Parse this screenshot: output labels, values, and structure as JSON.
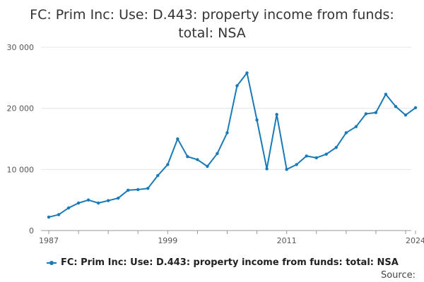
{
  "title": "FC: Prim Inc: Use: D.443: property income from funds: total: NSA",
  "source_label": "Source:",
  "legend": {
    "label": "FC: Prim Inc: Use: D.443: property income from funds: total: NSA"
  },
  "colors": {
    "series": "#1a7ab8",
    "grid": "#e4e4e4",
    "axis": "#999999"
  },
  "chart_data": {
    "type": "line",
    "title": "FC: Prim Inc: Use: D.443: property income from funds: total: NSA",
    "xlabel": "",
    "ylabel": "",
    "xlim": [
      1987,
      2024
    ],
    "ylim": [
      0,
      30000
    ],
    "grid": true,
    "legend_position": "bottom",
    "x_ticks": [
      1987,
      1999,
      2011,
      2024
    ],
    "x_tick_labels": [
      "1987",
      "1999",
      "2011",
      "2024"
    ],
    "y_ticks": [
      0,
      10000,
      20000,
      30000
    ],
    "y_tick_labels": [
      "0",
      "10 000",
      "20 000",
      "30 000"
    ],
    "series": [
      {
        "name": "FC: Prim Inc: Use: D.443: property income from funds: total: NSA",
        "x": [
          1987,
          1988,
          1989,
          1990,
          1991,
          1992,
          1993,
          1994,
          1995,
          1996,
          1997,
          1998,
          1999,
          2000,
          2001,
          2002,
          2003,
          2004,
          2005,
          2006,
          2007,
          2008,
          2009,
          2010,
          2011,
          2012,
          2013,
          2014,
          2015,
          2016,
          2017,
          2018,
          2019,
          2020,
          2021,
          2022,
          2023,
          2024
        ],
        "values": [
          2200,
          2600,
          3700,
          4500,
          5000,
          4500,
          4900,
          5300,
          6600,
          6700,
          6900,
          9000,
          10800,
          15000,
          12100,
          11600,
          10500,
          12600,
          16000,
          23700,
          25800,
          18100,
          10100,
          19000,
          10000,
          10800,
          12200,
          11900,
          12500,
          13600,
          16000,
          17000,
          19100,
          19300,
          22300,
          20300,
          18900,
          20100
        ]
      }
    ]
  }
}
